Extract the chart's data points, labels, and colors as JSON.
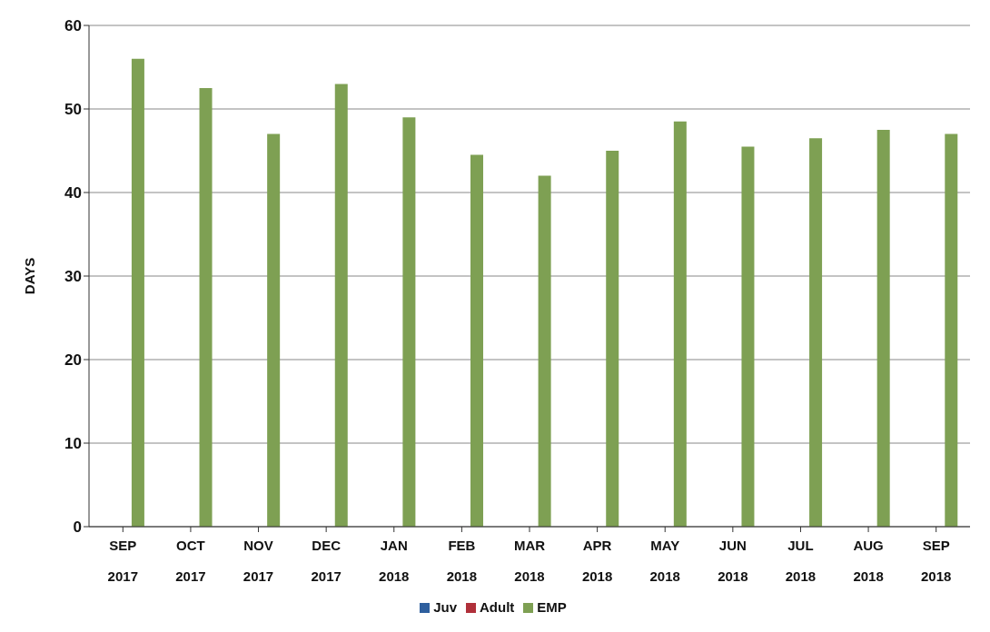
{
  "chart_data": {
    "type": "bar",
    "ylabel": "DAYS",
    "categories": [
      "SEP 2017",
      "OCT 2017",
      "NOV 2017",
      "DEC 2017",
      "JAN 2018",
      "FEB 2018",
      "MAR 2018",
      "APR 2018",
      "MAY 2018",
      "JUN 2018",
      "JUL 2018",
      "AUG 2018",
      "SEP 2018"
    ],
    "series": [
      {
        "name": "Juv",
        "color": "#2e5f9e",
        "values": [
          0,
          0,
          0,
          0,
          0,
          0,
          0,
          0,
          0,
          0,
          0,
          0,
          0
        ]
      },
      {
        "name": "Adult",
        "color": "#b0303a",
        "values": [
          0,
          0,
          0,
          0,
          0,
          0,
          0,
          0,
          0,
          0,
          0,
          0,
          0
        ]
      },
      {
        "name": "EMP",
        "color": "#7ea053",
        "values": [
          56,
          52.5,
          47,
          53,
          49,
          44.5,
          42,
          45,
          48.5,
          45.5,
          46.5,
          47.5,
          47
        ]
      }
    ],
    "ylim": [
      0,
      60
    ],
    "yticks": [
      0,
      10,
      20,
      30,
      40,
      50,
      60
    ],
    "grid": "y",
    "legend": "bottom"
  }
}
